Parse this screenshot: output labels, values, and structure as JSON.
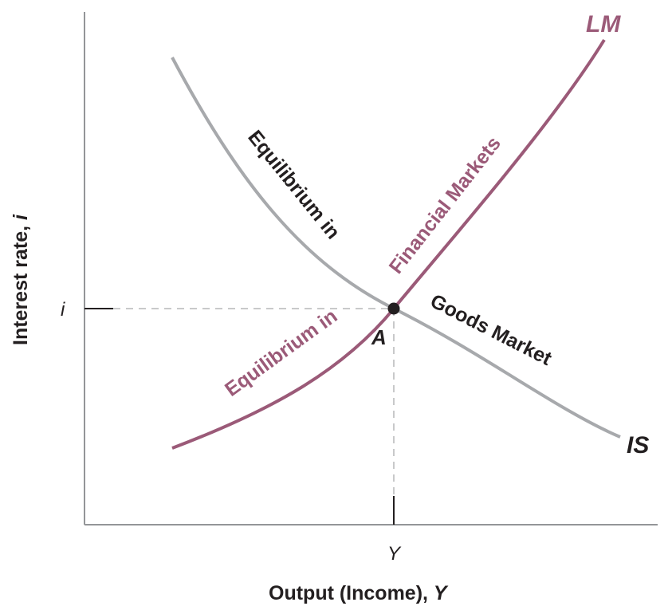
{
  "axes": {
    "x_label": "Output (Income), ",
    "x_label_var": "Y",
    "y_label": "Interest rate, ",
    "y_label_var": "i",
    "x_tick": "Y",
    "y_tick": "i"
  },
  "curves": {
    "is_label": "IS",
    "lm_label": "LM"
  },
  "point": {
    "label": "A"
  },
  "annotations": {
    "goods_line1": "Equilibrium in",
    "goods_line2": "Goods Market",
    "financial_line1": "Equilibrium in",
    "financial_line2": "Financial Markets"
  },
  "colors": {
    "is_curve": "#a7a9ac",
    "lm_curve": "#9b5a78",
    "axis": "#939598",
    "dashed": "#b5b7b9",
    "text": "#231f20"
  }
}
